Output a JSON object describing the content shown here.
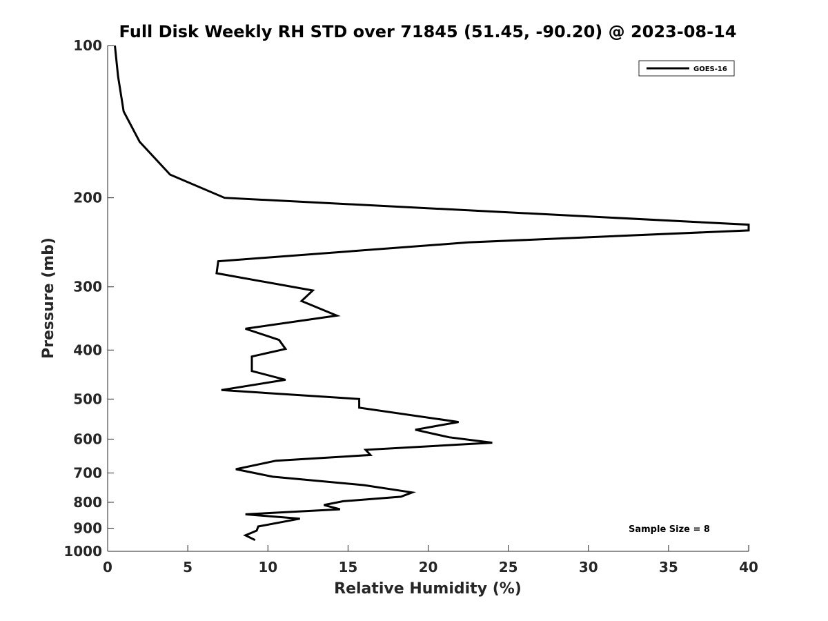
{
  "chart_data": {
    "type": "line",
    "title": "Full Disk Weekly RH STD over 71845 (51.45, -90.20) @ 2023-08-14",
    "xlabel": "Relative Humidity (%)",
    "ylabel": "Pressure (mb)",
    "xlim": [
      0,
      40
    ],
    "ylim": [
      100,
      1000
    ],
    "y_scale": "log",
    "y_reversed": true,
    "xticks": [
      0,
      5,
      10,
      15,
      20,
      25,
      30,
      35,
      40
    ],
    "yticks": [
      100,
      200,
      300,
      400,
      500,
      600,
      700,
      800,
      900,
      1000
    ],
    "grid": false,
    "legend_position": "top-right",
    "annotation": "Sample Size = 8",
    "colors": {
      "series": "#000000",
      "axes": "#262626",
      "background": "#ffffff"
    },
    "series": [
      {
        "name": "GOES-16",
        "x": [
          0.45,
          0.65,
          1.0,
          2.0,
          3.9,
          7.3,
          40.0,
          40.0,
          22.5,
          6.9,
          6.8,
          12.8,
          12.1,
          14.3,
          8.6,
          10.7,
          11.1,
          9.0,
          9.0,
          11.1,
          7.1,
          15.7,
          15.7,
          21.9,
          19.2,
          21.3,
          24.0,
          16.1,
          16.4,
          10.5,
          8.0,
          10.3,
          16.0,
          19.0,
          18.3,
          14.7,
          13.5,
          14.5,
          8.6,
          12.0,
          9.4,
          9.3,
          8.6,
          9.2
        ],
        "y": [
          100,
          115,
          135,
          155,
          180,
          200,
          226,
          232,
          245,
          267,
          282,
          305,
          320,
          342,
          363,
          382,
          398,
          412,
          440,
          458,
          480,
          500,
          520,
          555,
          575,
          595,
          610,
          630,
          645,
          662,
          688,
          712,
          740,
          765,
          780,
          796,
          810,
          826,
          845,
          862,
          893,
          910,
          930,
          950
        ]
      }
    ]
  }
}
